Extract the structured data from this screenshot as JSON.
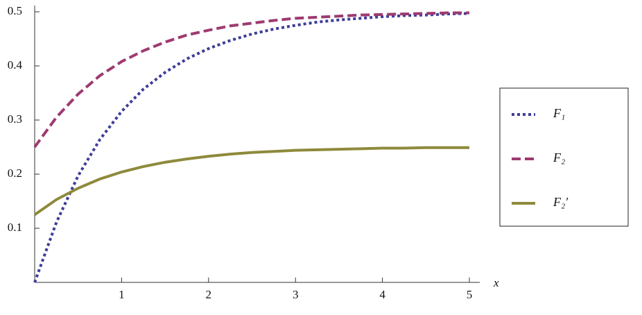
{
  "chart_data": {
    "type": "line",
    "x_label": "x",
    "x": [
      0,
      0.25,
      0.5,
      0.75,
      1,
      1.25,
      1.5,
      1.75,
      2,
      2.25,
      2.5,
      2.75,
      3,
      3.25,
      3.5,
      3.75,
      4,
      4.25,
      4.5,
      4.75,
      5
    ],
    "series": [
      {
        "name": "F₁",
        "color": "#3d3d98",
        "dash": "dotted",
        "values": [
          0,
          0.111,
          0.197,
          0.264,
          0.316,
          0.357,
          0.388,
          0.413,
          0.432,
          0.447,
          0.459,
          0.468,
          0.475,
          0.481,
          0.485,
          0.488,
          0.491,
          0.493,
          0.494,
          0.496,
          0.497
        ]
      },
      {
        "name": "F₂",
        "color": "#9d3a70",
        "dash": "dashed",
        "values": [
          0.25,
          0.305,
          0.348,
          0.382,
          0.408,
          0.428,
          0.444,
          0.457,
          0.466,
          0.474,
          0.479,
          0.484,
          0.488,
          0.49,
          0.492,
          0.494,
          0.495,
          0.496,
          0.497,
          0.498,
          0.498
        ]
      },
      {
        "name": "F₂′",
        "color": "#8e8a3c",
        "dash": "solid",
        "values": [
          0.125,
          0.153,
          0.174,
          0.191,
          0.204,
          0.214,
          0.222,
          0.228,
          0.233,
          0.237,
          0.24,
          0.242,
          0.244,
          0.245,
          0.246,
          0.247,
          0.248,
          0.248,
          0.249,
          0.249,
          0.249
        ]
      }
    ],
    "xlim": [
      0,
      5
    ],
    "ylim": [
      0,
      0.5
    ],
    "xticks": [
      1,
      2,
      3,
      4,
      5
    ],
    "yticks": [
      0.1,
      0.2,
      0.3,
      0.4,
      0.5
    ],
    "grid": false,
    "legend": "right"
  }
}
